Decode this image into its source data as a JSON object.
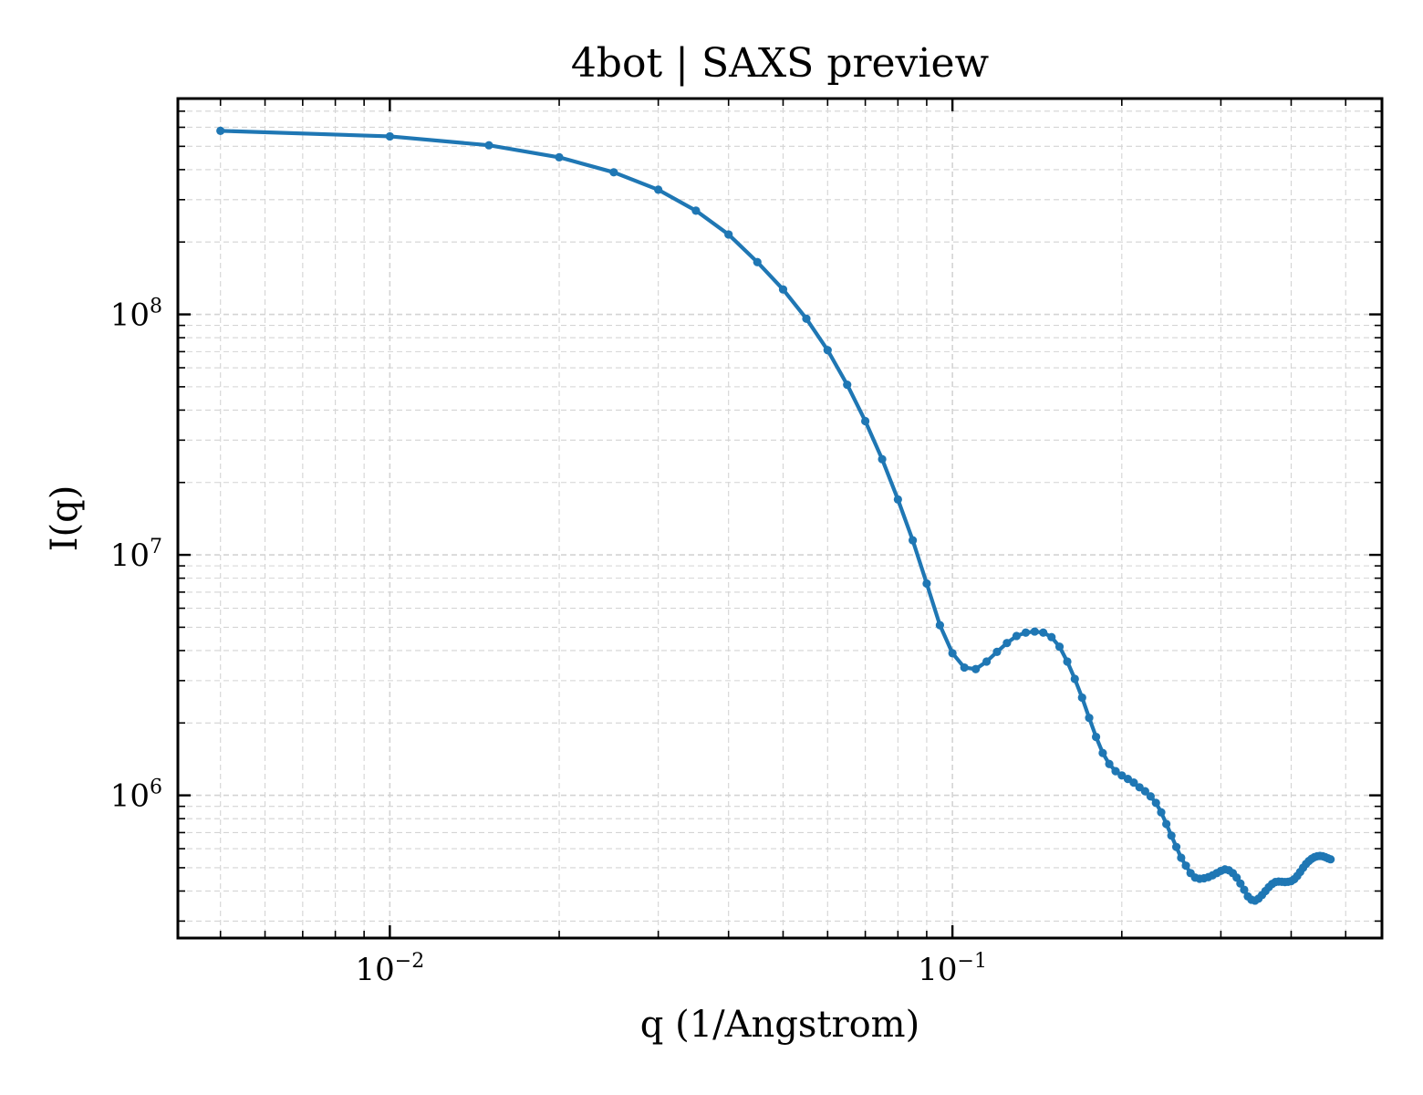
{
  "chart_data": {
    "type": "line",
    "title": "4bot | SAXS preview",
    "xlabel": "q (1/Angstrom)",
    "ylabel": "I(q)",
    "xscale": "log",
    "yscale": "log",
    "xlim": [
      0.0042,
      0.58
    ],
    "ylim": [
      255000,
      790000000
    ],
    "grid": true,
    "grid_style": "dashed, major and minor",
    "x_ticks": [
      {
        "value": 0.01,
        "base": "10",
        "exp": "−2"
      },
      {
        "value": 0.1,
        "base": "10",
        "exp": "−1"
      }
    ],
    "y_ticks": [
      {
        "value": 1000000,
        "base": "10",
        "exp": "6"
      },
      {
        "value": 10000000,
        "base": "10",
        "exp": "7"
      },
      {
        "value": 100000000,
        "base": "10",
        "exp": "8"
      }
    ],
    "line_color": "#1f77b4",
    "series": [
      {
        "marker": "dot",
        "points": [
          [
            0.005,
            580000000
          ],
          [
            0.01,
            550000000
          ],
          [
            0.015,
            505000000
          ],
          [
            0.02,
            450000000
          ],
          [
            0.025,
            390000000
          ],
          [
            0.03,
            330000000
          ],
          [
            0.035,
            270000000
          ],
          [
            0.04,
            215000000
          ],
          [
            0.045,
            165000000
          ],
          [
            0.05,
            127000000
          ],
          [
            0.055,
            96000000
          ],
          [
            0.06,
            71000000
          ],
          [
            0.065,
            51000000
          ],
          [
            0.07,
            36000000
          ],
          [
            0.075,
            25000000
          ],
          [
            0.08,
            17000000
          ],
          [
            0.085,
            11500000
          ],
          [
            0.09,
            7600000
          ],
          [
            0.095,
            5100000
          ],
          [
            0.1,
            3900000
          ],
          [
            0.105,
            3400000
          ],
          [
            0.11,
            3350000
          ],
          [
            0.115,
            3600000
          ],
          [
            0.12,
            3950000
          ],
          [
            0.125,
            4300000
          ],
          [
            0.13,
            4600000
          ],
          [
            0.135,
            4750000
          ],
          [
            0.14,
            4800000
          ],
          [
            0.145,
            4750000
          ],
          [
            0.15,
            4550000
          ],
          [
            0.155,
            4150000
          ],
          [
            0.16,
            3600000
          ],
          [
            0.165,
            3050000
          ],
          [
            0.17,
            2550000
          ],
          [
            0.175,
            2100000
          ],
          [
            0.18,
            1750000
          ],
          [
            0.185,
            1500000
          ],
          [
            0.19,
            1350000
          ],
          [
            0.195,
            1260000
          ],
          [
            0.2,
            1210000
          ],
          [
            0.205,
            1170000
          ],
          [
            0.21,
            1130000
          ],
          [
            0.215,
            1080000
          ],
          [
            0.22,
            1040000
          ],
          [
            0.225,
            990000
          ],
          [
            0.23,
            930000
          ],
          [
            0.235,
            850000
          ],
          [
            0.24,
            760000
          ],
          [
            0.245,
            680000
          ],
          [
            0.25,
            610000
          ],
          [
            0.255,
            550000
          ],
          [
            0.26,
            510000
          ],
          [
            0.265,
            475000
          ],
          [
            0.27,
            455000
          ],
          [
            0.275,
            450000
          ],
          [
            0.28,
            452000
          ],
          [
            0.285,
            457000
          ],
          [
            0.29,
            465000
          ],
          [
            0.295,
            475000
          ],
          [
            0.3,
            485000
          ],
          [
            0.305,
            492000
          ],
          [
            0.31,
            488000
          ],
          [
            0.315,
            475000
          ],
          [
            0.32,
            455000
          ],
          [
            0.325,
            430000
          ],
          [
            0.33,
            405000
          ],
          [
            0.335,
            380000
          ],
          [
            0.34,
            368000
          ],
          [
            0.345,
            365000
          ],
          [
            0.35,
            372000
          ],
          [
            0.355,
            385000
          ],
          [
            0.36,
            400000
          ],
          [
            0.365,
            415000
          ],
          [
            0.37,
            428000
          ],
          [
            0.375,
            436000
          ],
          [
            0.38,
            438000
          ],
          [
            0.385,
            437000
          ],
          [
            0.39,
            436000
          ],
          [
            0.395,
            437000
          ],
          [
            0.4,
            440000
          ],
          [
            0.405,
            448000
          ],
          [
            0.41,
            462000
          ],
          [
            0.415,
            480000
          ],
          [
            0.42,
            500000
          ],
          [
            0.425,
            518000
          ],
          [
            0.43,
            533000
          ],
          [
            0.435,
            545000
          ],
          [
            0.44,
            553000
          ],
          [
            0.445,
            558000
          ],
          [
            0.45,
            560000
          ],
          [
            0.455,
            558000
          ],
          [
            0.46,
            553000
          ],
          [
            0.465,
            547000
          ],
          [
            0.47,
            542000
          ]
        ]
      }
    ]
  }
}
